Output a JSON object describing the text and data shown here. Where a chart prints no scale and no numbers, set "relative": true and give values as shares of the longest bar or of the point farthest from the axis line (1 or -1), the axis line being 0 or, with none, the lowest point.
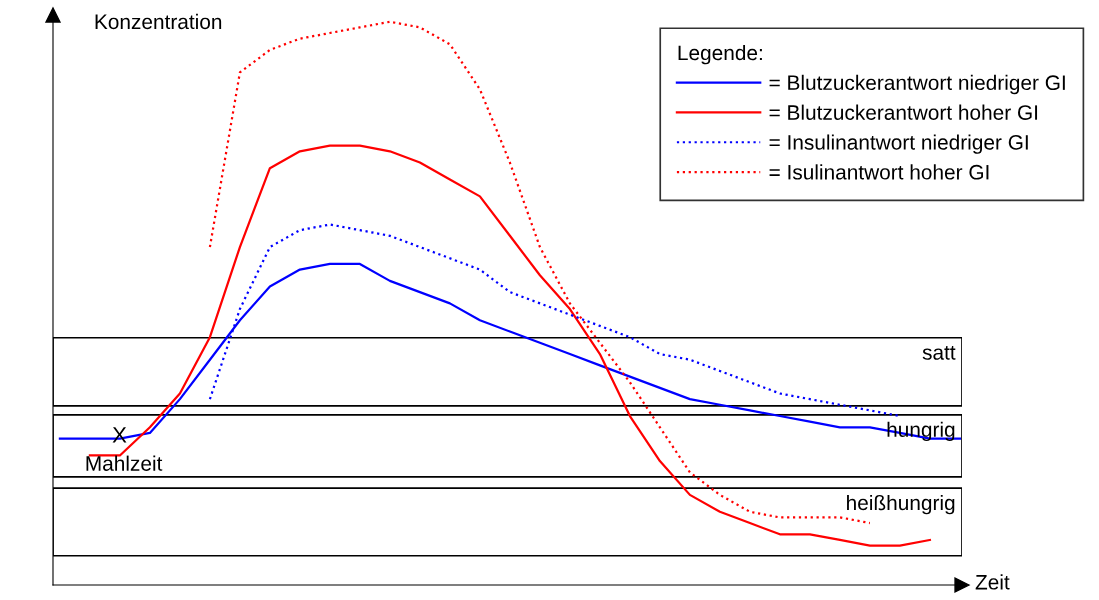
{
  "chart_data": {
    "type": "line",
    "relative": true,
    "ylabel": "Konzentration",
    "xlabel": "Zeit",
    "legend_title": "Legende:",
    "legend": "top right",
    "grid": false,
    "categories": [
      null,
      null,
      null,
      null,
      null,
      null,
      null,
      null,
      null,
      null,
      null,
      null,
      null,
      null,
      null,
      null,
      null,
      null,
      null,
      null,
      null,
      null,
      null,
      null,
      null,
      null,
      null,
      null,
      null,
      null,
      null
    ],
    "series": [
      {
        "name": "= Blutzuckerantwort niedriger GI",
        "color": "#0000ff",
        "line_style": "solid",
        "values": [
          0.26,
          0.26,
          0.26,
          0.27,
          0.33,
          0.4,
          0.47,
          0.53,
          0.56,
          0.57,
          0.57,
          0.54,
          0.52,
          0.5,
          0.47,
          0.45,
          0.43,
          0.41,
          0.39,
          0.37,
          0.35,
          0.33,
          0.32,
          0.31,
          0.3,
          0.29,
          0.28,
          0.28,
          0.27,
          0.26,
          0.26
        ]
      },
      {
        "name": "= Blutzuckerantwort hoher GI",
        "color": "#ff0000",
        "line_style": "solid",
        "values": [
          null,
          0.23,
          0.23,
          0.28,
          0.34,
          0.44,
          0.6,
          0.74,
          0.77,
          0.78,
          0.78,
          0.77,
          0.75,
          0.72,
          0.69,
          0.62,
          0.55,
          0.49,
          0.41,
          0.3,
          0.22,
          0.16,
          0.13,
          0.11,
          0.09,
          0.09,
          0.08,
          0.07,
          0.07,
          0.08,
          null
        ]
      },
      {
        "name": "= Insulinantwort niedriger GI",
        "color": "#0000ff",
        "line_style": "dotted",
        "values": [
          null,
          null,
          null,
          null,
          null,
          0.33,
          0.49,
          0.6,
          0.63,
          0.64,
          0.63,
          0.62,
          0.6,
          0.58,
          0.56,
          0.52,
          0.5,
          0.48,
          0.46,
          0.44,
          0.41,
          0.4,
          0.38,
          0.36,
          0.34,
          0.33,
          0.32,
          0.31,
          0.3,
          null,
          null
        ]
      },
      {
        "name": "= Isulinantwort hoher GI",
        "color": "#ff0000",
        "line_style": "dotted",
        "values": [
          null,
          null,
          null,
          null,
          null,
          0.6,
          0.91,
          0.95,
          0.97,
          0.98,
          0.99,
          1.0,
          0.99,
          0.96,
          0.88,
          0.75,
          0.6,
          0.5,
          0.43,
          0.36,
          0.28,
          0.2,
          0.16,
          0.13,
          0.12,
          0.12,
          0.12,
          0.11,
          null,
          null,
          null
        ]
      }
    ],
    "bands": [
      {
        "axis": "y",
        "from": 0.318,
        "to": 0.439,
        "label": "satt"
      },
      {
        "axis": "y",
        "from": 0.192,
        "to": 0.302,
        "label": "hungrig"
      },
      {
        "axis": "y",
        "from": 0.052,
        "to": 0.172,
        "label": "heißhungrig"
      }
    ],
    "annotations": [
      "X",
      "Mahlzeit"
    ]
  }
}
